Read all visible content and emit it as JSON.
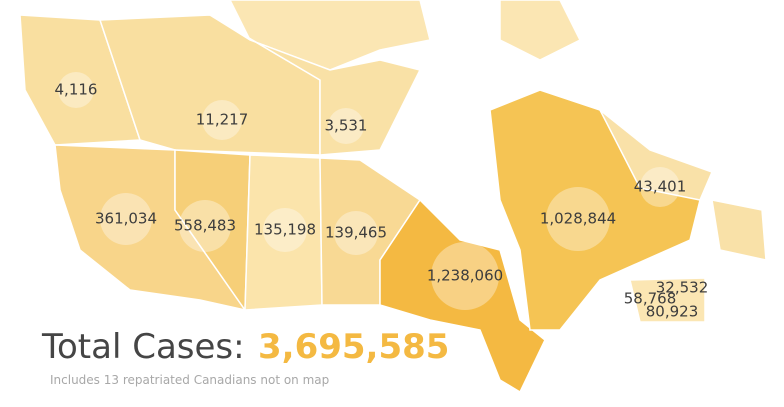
{
  "regions": [
    {
      "label": "4,116"
    },
    {
      "label": "11,217"
    },
    {
      "label": "3,531"
    },
    {
      "label": "361,034"
    },
    {
      "label": "558,483"
    },
    {
      "label": "135,198"
    },
    {
      "label": "139,465"
    },
    {
      "label": "1,238,060"
    },
    {
      "label": "1,028,844"
    },
    {
      "label": "43,401"
    },
    {
      "label": "32,532"
    },
    {
      "label": "58,768"
    },
    {
      "label": "80,923"
    }
  ],
  "total": {
    "label": "Total Cases:",
    "value": "3,695,585"
  },
  "note": "Includes 13 repatriated Canadians not on map"
}
